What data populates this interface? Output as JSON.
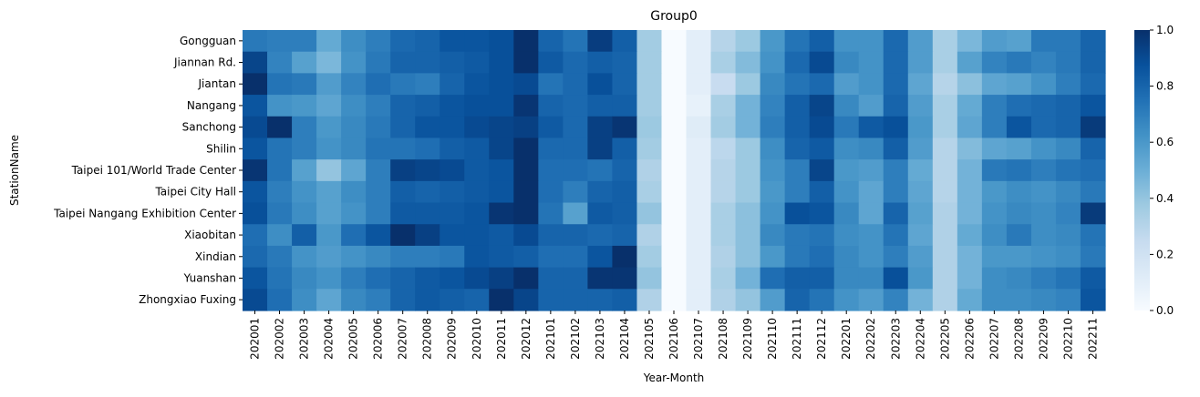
{
  "chart_data": {
    "type": "heatmap",
    "title": "Group0",
    "xlabel": "Year-Month",
    "ylabel": "StationName",
    "colormap": "Blues",
    "colorbar": {
      "vmin": 0.0,
      "vmax": 1.0,
      "ticks": [
        "0.0",
        "0.2",
        "0.4",
        "0.6",
        "0.8",
        "1.0"
      ]
    },
    "x": [
      "202001",
      "202002",
      "202003",
      "202004",
      "202005",
      "202006",
      "202007",
      "202008",
      "202009",
      "202010",
      "202011",
      "202012",
      "202101",
      "202102",
      "202103",
      "202104",
      "202105",
      "202106",
      "202107",
      "202108",
      "202109",
      "202110",
      "202111",
      "202112",
      "202201",
      "202202",
      "202203",
      "202204",
      "202205",
      "202206",
      "202207",
      "202208",
      "202209",
      "202210",
      "202211"
    ],
    "y": [
      "Gongguan ",
      "Jiannan Rd. ",
      "Jiantan ",
      "Nangang ",
      "Sanchong ",
      "Shilin ",
      "Taipei 101/World Trade Center",
      "Taipei City Hall",
      "Taipei Nangang Exhibition Center",
      "Xiaobitan",
      "Xindian ",
      "Yuanshan",
      "Zhongxiao Fuxing"
    ],
    "values": [
      [
        0.72,
        0.7,
        0.7,
        0.52,
        0.64,
        0.7,
        0.78,
        0.8,
        0.86,
        0.86,
        0.88,
        1.0,
        0.8,
        0.74,
        0.95,
        0.82,
        0.36,
        0.0,
        0.1,
        0.3,
        0.38,
        0.6,
        0.74,
        0.82,
        0.62,
        0.62,
        0.78,
        0.58,
        0.34,
        0.46,
        0.58,
        0.56,
        0.72,
        0.72,
        0.8
      ],
      [
        0.92,
        0.68,
        0.56,
        0.46,
        0.62,
        0.72,
        0.8,
        0.8,
        0.82,
        0.84,
        0.88,
        1.0,
        0.84,
        0.78,
        0.82,
        0.8,
        0.36,
        0.0,
        0.1,
        0.34,
        0.44,
        0.62,
        0.78,
        0.9,
        0.66,
        0.62,
        0.78,
        0.58,
        0.34,
        0.56,
        0.68,
        0.72,
        0.68,
        0.72,
        0.8
      ],
      [
        1.0,
        0.74,
        0.72,
        0.58,
        0.68,
        0.76,
        0.72,
        0.7,
        0.8,
        0.86,
        0.88,
        0.9,
        0.74,
        0.78,
        0.88,
        0.8,
        0.36,
        0.0,
        0.1,
        0.24,
        0.38,
        0.66,
        0.74,
        0.78,
        0.58,
        0.62,
        0.78,
        0.54,
        0.3,
        0.42,
        0.54,
        0.56,
        0.62,
        0.7,
        0.78
      ],
      [
        0.86,
        0.62,
        0.6,
        0.54,
        0.64,
        0.7,
        0.8,
        0.82,
        0.86,
        0.88,
        0.88,
        0.98,
        0.8,
        0.78,
        0.82,
        0.82,
        0.36,
        0.0,
        0.08,
        0.34,
        0.48,
        0.68,
        0.82,
        0.92,
        0.66,
        0.58,
        0.8,
        0.58,
        0.34,
        0.52,
        0.7,
        0.76,
        0.78,
        0.8,
        0.86
      ],
      [
        0.9,
        1.0,
        0.7,
        0.6,
        0.66,
        0.72,
        0.8,
        0.86,
        0.86,
        0.9,
        0.92,
        0.94,
        0.84,
        0.78,
        0.94,
        0.98,
        0.38,
        0.0,
        0.12,
        0.36,
        0.48,
        0.7,
        0.82,
        0.9,
        0.72,
        0.84,
        0.88,
        0.6,
        0.34,
        0.54,
        0.7,
        0.86,
        0.78,
        0.8,
        0.96
      ],
      [
        0.86,
        0.74,
        0.7,
        0.62,
        0.66,
        0.74,
        0.74,
        0.76,
        0.82,
        0.84,
        0.92,
        1.0,
        0.78,
        0.78,
        0.94,
        0.82,
        0.36,
        0.0,
        0.1,
        0.28,
        0.38,
        0.64,
        0.8,
        0.84,
        0.64,
        0.66,
        0.82,
        0.58,
        0.3,
        0.44,
        0.54,
        0.56,
        0.62,
        0.66,
        0.8
      ],
      [
        0.98,
        0.74,
        0.56,
        0.4,
        0.54,
        0.7,
        0.94,
        0.92,
        0.9,
        0.84,
        0.86,
        1.0,
        0.76,
        0.76,
        0.74,
        0.8,
        0.32,
        0.0,
        0.1,
        0.3,
        0.38,
        0.62,
        0.7,
        0.92,
        0.6,
        0.58,
        0.7,
        0.52,
        0.3,
        0.48,
        0.72,
        0.74,
        0.7,
        0.74,
        0.76
      ],
      [
        0.86,
        0.7,
        0.62,
        0.56,
        0.64,
        0.7,
        0.82,
        0.8,
        0.82,
        0.84,
        0.86,
        1.0,
        0.76,
        0.7,
        0.8,
        0.82,
        0.34,
        0.0,
        0.1,
        0.3,
        0.38,
        0.6,
        0.7,
        0.82,
        0.62,
        0.54,
        0.7,
        0.54,
        0.3,
        0.48,
        0.6,
        0.64,
        0.62,
        0.66,
        0.72
      ],
      [
        0.88,
        0.72,
        0.64,
        0.56,
        0.62,
        0.7,
        0.84,
        0.84,
        0.84,
        0.86,
        0.98,
        1.0,
        0.74,
        0.56,
        0.84,
        0.82,
        0.4,
        0.0,
        0.1,
        0.34,
        0.42,
        0.62,
        0.88,
        0.86,
        0.66,
        0.54,
        0.8,
        0.56,
        0.32,
        0.48,
        0.62,
        0.66,
        0.64,
        0.68,
        0.96
      ],
      [
        0.76,
        0.64,
        0.82,
        0.6,
        0.76,
        0.86,
        1.0,
        0.94,
        0.86,
        0.86,
        0.84,
        0.9,
        0.8,
        0.8,
        0.78,
        0.8,
        0.32,
        0.0,
        0.1,
        0.34,
        0.42,
        0.66,
        0.72,
        0.74,
        0.64,
        0.62,
        0.74,
        0.54,
        0.32,
        0.52,
        0.64,
        0.72,
        0.64,
        0.66,
        0.74
      ],
      [
        0.78,
        0.72,
        0.62,
        0.58,
        0.62,
        0.66,
        0.7,
        0.7,
        0.72,
        0.86,
        0.84,
        0.82,
        0.76,
        0.76,
        0.86,
        1.0,
        0.36,
        0.0,
        0.1,
        0.32,
        0.42,
        0.6,
        0.72,
        0.76,
        0.66,
        0.62,
        0.7,
        0.58,
        0.32,
        0.48,
        0.6,
        0.6,
        0.62,
        0.64,
        0.72
      ],
      [
        0.86,
        0.74,
        0.66,
        0.62,
        0.7,
        0.76,
        0.8,
        0.84,
        0.86,
        0.9,
        0.94,
        1.0,
        0.8,
        0.8,
        0.98,
        0.98,
        0.4,
        0.0,
        0.1,
        0.34,
        0.48,
        0.76,
        0.82,
        0.82,
        0.66,
        0.66,
        0.88,
        0.6,
        0.32,
        0.48,
        0.64,
        0.66,
        0.7,
        0.74,
        0.84
      ],
      [
        0.9,
        0.76,
        0.64,
        0.54,
        0.66,
        0.7,
        0.8,
        0.84,
        0.82,
        0.8,
        1.0,
        0.92,
        0.8,
        0.8,
        0.8,
        0.82,
        0.32,
        0.0,
        0.1,
        0.32,
        0.4,
        0.58,
        0.8,
        0.74,
        0.62,
        0.58,
        0.68,
        0.48,
        0.32,
        0.52,
        0.64,
        0.64,
        0.66,
        0.68,
        0.86
      ]
    ]
  }
}
